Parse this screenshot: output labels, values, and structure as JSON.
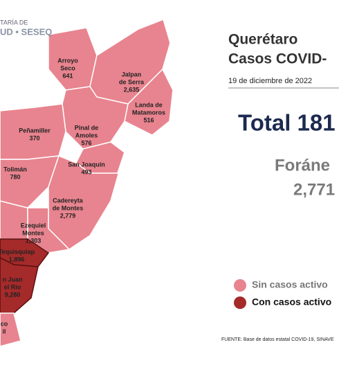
{
  "header": {
    "agency_line1": "TARÍA DE",
    "agency_line2": "UD • SESEQ",
    "title_line1": "Querétaro",
    "title_line2": "Casos COVID-",
    "date": "19 de diciembre de 2022"
  },
  "totals": {
    "total": "Total 181",
    "foraneos_label": "Foráne",
    "foraneos_value": "2,771"
  },
  "legend": [
    {
      "label": "Sin casos activo",
      "color": "#e8848f"
    },
    {
      "label": "Con casos activo",
      "color": "#a52a2a"
    }
  ],
  "source": "FUENTE: Base de datos estatal COVID-19, SINAVE",
  "map": {
    "municipalities": [
      {
        "name_lines": [
          "Arroyo",
          "Seco"
        ],
        "cases": "641",
        "active": false
      },
      {
        "name_lines": [
          "Jalpan",
          "de Serra"
        ],
        "cases": "2,635",
        "active": false
      },
      {
        "name_lines": [
          "Landa de",
          "Matamoros"
        ],
        "cases": "516",
        "active": false
      },
      {
        "name_lines": [
          "Pinal de",
          "Amoles"
        ],
        "cases": "576",
        "active": false
      },
      {
        "name_lines": [
          "Peñamiller"
        ],
        "cases": "370",
        "active": false
      },
      {
        "name_lines": [
          "San Joaquín"
        ],
        "cases": "493",
        "active": false
      },
      {
        "name_lines": [
          "Tolimán"
        ],
        "cases": "780",
        "active": false
      },
      {
        "name_lines": [
          "Cadereyta",
          "de Montes"
        ],
        "cases": "2,779",
        "active": false
      },
      {
        "name_lines": [
          "Ezequiel",
          "Montes"
        ],
        "cases": "1,303",
        "active": false
      },
      {
        "name_lines": [
          "Tequisquiap"
        ],
        "cases": "1,896",
        "active": true
      },
      {
        "name_lines": [
          "n Juan",
          "el Río"
        ],
        "cases": "9,280",
        "active": true
      },
      {
        "name_lines": [
          "co",
          "il"
        ],
        "active": false
      }
    ]
  }
}
